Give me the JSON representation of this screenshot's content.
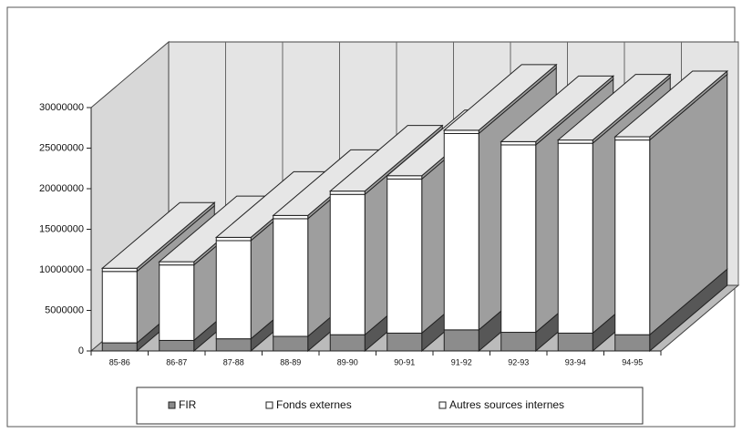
{
  "chart_data": {
    "type": "bar3d_stacked",
    "categories": [
      "85-86",
      "86-87",
      "87-88",
      "88-89",
      "89-90",
      "90-91",
      "91-92",
      "92-93",
      "93-94",
      "94-95"
    ],
    "series": [
      {
        "name": "FIR",
        "color": "#8c8c8c",
        "values": [
          1000000,
          1300000,
          1500000,
          1800000,
          2000000,
          2200000,
          2600000,
          2300000,
          2200000,
          2000000
        ]
      },
      {
        "name": "Fonds externes",
        "color": "#ffffff",
        "values": [
          8800000,
          9300000,
          12100000,
          14500000,
          17300000,
          19000000,
          24200000,
          23100000,
          23400000,
          24000000
        ]
      },
      {
        "name": "Autres sources internes",
        "color": "#ffffff",
        "values": [
          400000,
          400000,
          400000,
          400000,
          400000,
          400000,
          400000,
          400000,
          400000,
          400000
        ]
      }
    ],
    "ylim": [
      0,
      30000000
    ],
    "yticks": [
      0,
      5000000,
      10000000,
      15000000,
      20000000,
      25000000,
      30000000
    ],
    "legend": "bottom"
  }
}
